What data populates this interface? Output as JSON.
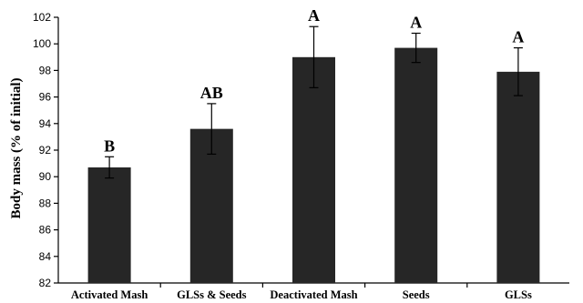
{
  "chart_data": {
    "type": "bar",
    "title": "",
    "xlabel": "",
    "ylabel": "Body mass (% of initial)",
    "ylim": [
      82,
      102
    ],
    "yticks": [
      82,
      84,
      86,
      88,
      90,
      92,
      94,
      96,
      98,
      100,
      102
    ],
    "grid": false,
    "categories": [
      "Activated Mash",
      "GLSs & Seeds",
      "Deactivated Mash",
      "Seeds",
      "GLSs"
    ],
    "values": [
      90.7,
      93.6,
      99.0,
      99.7,
      97.9
    ],
    "errors": [
      0.8,
      1.9,
      2.3,
      1.1,
      1.8
    ],
    "significance": [
      "B",
      "AB",
      "A",
      "A",
      "A"
    ],
    "bar_color": "#262626"
  }
}
